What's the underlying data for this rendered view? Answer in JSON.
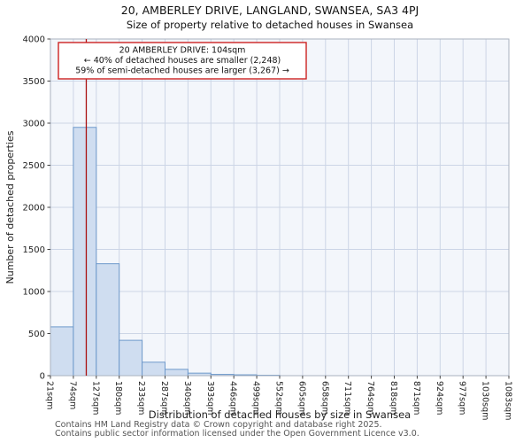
{
  "chart_data": {
    "type": "bar",
    "title": "20, AMBERLEY DRIVE, LANGLAND, SWANSEA, SA3 4PJ",
    "subtitle": "Size of property relative to detached houses in Swansea",
    "xlabel": "Distribution of detached houses by size in Swansea",
    "ylabel": "Number of detached properties",
    "x_range_sqm": [
      21,
      1083
    ],
    "ylim": [
      0,
      4000
    ],
    "ytick_step": 500,
    "grid": true,
    "legend": false,
    "tick_labels": [
      "21sqm",
      "74sqm",
      "127sqm",
      "180sqm",
      "233sqm",
      "287sqm",
      "340sqm",
      "393sqm",
      "446sqm",
      "499sqm",
      "552sqm",
      "605sqm",
      "658sqm",
      "711sqm",
      "764sqm",
      "818sqm",
      "871sqm",
      "924sqm",
      "977sqm",
      "1030sqm",
      "1083sqm"
    ],
    "bin_edges_sqm": [
      21,
      74,
      127,
      180,
      233,
      287,
      340,
      393,
      446,
      499,
      552,
      605,
      658,
      711,
      764,
      818,
      871,
      924,
      977,
      1030,
      1083
    ],
    "values": [
      580,
      2950,
      1330,
      420,
      160,
      75,
      30,
      15,
      10,
      5,
      0,
      0,
      0,
      0,
      0,
      0,
      0,
      0,
      0,
      0
    ],
    "marker": {
      "value_sqm": 104,
      "color": "#aa1111"
    },
    "annotation": {
      "lines": [
        "20 AMBERLEY DRIVE: 104sqm",
        "← 40% of detached houses are smaller (2,248)",
        "59% of semi-detached houses are larger (3,267) →"
      ],
      "border_color": "#cc2222"
    },
    "colors": {
      "bar_fill": "#cfddf0",
      "bar_stroke": "#6e99cb",
      "grid": "#ccd5e6",
      "plot_bg": "#f3f6fb",
      "spine": "#aab2bf",
      "marker": "#aa1111"
    }
  },
  "footer": {
    "line1": "Contains HM Land Registry data © Crown copyright and database right 2025.",
    "line2": "Contains public sector information licensed under the Open Government Licence v3.0."
  }
}
